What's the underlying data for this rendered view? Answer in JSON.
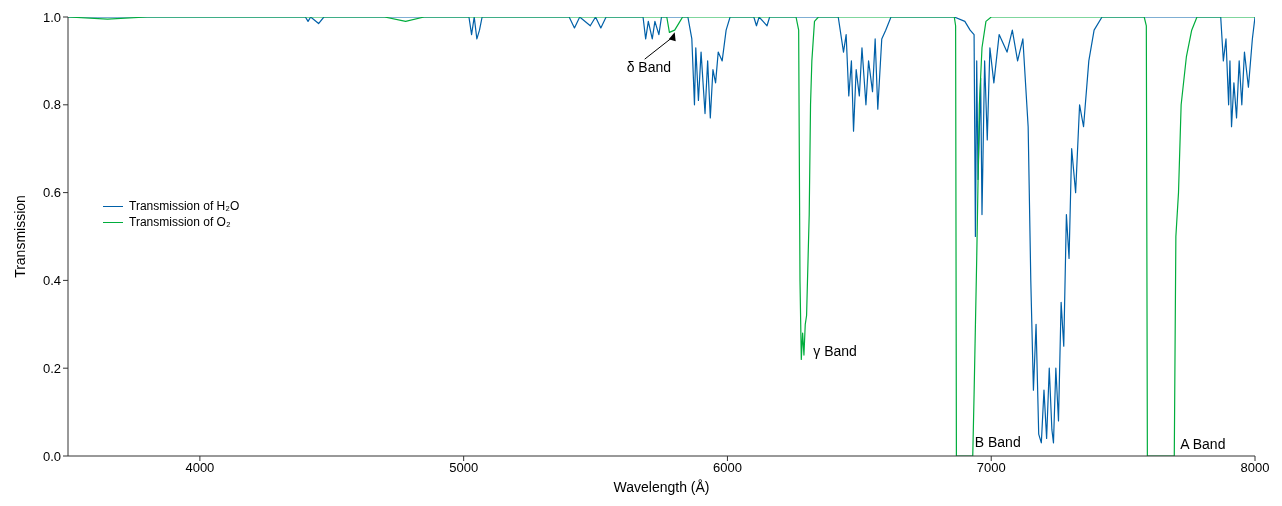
{
  "chart_data": {
    "type": "line",
    "xlabel": "Wavelength (Å)",
    "ylabel": "Transmission",
    "xlim": [
      3500,
      8000
    ],
    "xticks": [
      4000,
      5000,
      6000,
      7000,
      8000
    ],
    "ylim": [
      0,
      1
    ],
    "yticks": [
      {
        "value": 0,
        "label": "0.0"
      },
      {
        "value": 0.2,
        "label": "0.2"
      },
      {
        "value": 0.4,
        "label": "0.4"
      },
      {
        "value": 0.6,
        "label": "0.6"
      },
      {
        "value": 0.8,
        "label": "0.8"
      },
      {
        "value": 1,
        "label": "1.0"
      }
    ],
    "legend": "left",
    "marker": "none",
    "line_style": "solid",
    "series": [
      {
        "name": "Transmission of H₂O",
        "color": "#0060a8",
        "x": [
          3500,
          4400,
          4410,
          4420,
          4450,
          4470,
          5020,
          5030,
          5040,
          5050,
          5060,
          5070,
          5400,
          5420,
          5440,
          5480,
          5500,
          5520,
          5540,
          5680,
          5690,
          5700,
          5715,
          5725,
          5740,
          5750,
          5850,
          5865,
          5875,
          5880,
          5890,
          5900,
          5915,
          5925,
          5935,
          5945,
          5955,
          5965,
          5980,
          5995,
          6010,
          6100,
          6110,
          6120,
          6150,
          6160,
          6420,
          6440,
          6450,
          6460,
          6470,
          6478,
          6488,
          6500,
          6510,
          6525,
          6535,
          6550,
          6560,
          6570,
          6585,
          6600,
          6620,
          6860,
          6900,
          6920,
          6935,
          6940,
          6945,
          6950,
          6960,
          6965,
          6975,
          6985,
          6995,
          7010,
          7030,
          7060,
          7080,
          7100,
          7120,
          7140,
          7150,
          7160,
          7170,
          7180,
          7190,
          7200,
          7210,
          7220,
          7230,
          7236,
          7245,
          7255,
          7265,
          7275,
          7285,
          7295,
          7305,
          7320,
          7335,
          7350,
          7370,
          7390,
          7420,
          7580,
          7870,
          7880,
          7890,
          7900,
          7905,
          7911,
          7920,
          7930,
          7940,
          7950,
          7960,
          7975,
          7990,
          8000
        ],
        "values": [
          1,
          1,
          0.99,
          1,
          0.985,
          1,
          1,
          0.96,
          1,
          0.95,
          0.97,
          1,
          1,
          0.975,
          1,
          0.98,
          1,
          0.975,
          1,
          1,
          0.95,
          0.99,
          0.95,
          0.99,
          0.96,
          1,
          1,
          0.95,
          0.8,
          0.93,
          0.81,
          0.92,
          0.78,
          0.9,
          0.77,
          0.88,
          0.85,
          0.92,
          0.9,
          0.97,
          1,
          1,
          0.98,
          1,
          0.98,
          1,
          1,
          0.92,
          0.96,
          0.82,
          0.9,
          0.74,
          0.88,
          0.82,
          0.93,
          0.8,
          0.9,
          0.83,
          0.95,
          0.79,
          0.95,
          0.97,
          1,
          1,
          0.99,
          0.97,
          0.96,
          0.5,
          0.9,
          0.63,
          0.86,
          0.55,
          0.9,
          0.72,
          0.93,
          0.85,
          0.96,
          0.92,
          0.97,
          0.9,
          0.95,
          0.75,
          0.4,
          0.15,
          0.3,
          0.05,
          0.03,
          0.15,
          0.04,
          0.2,
          0.06,
          0.03,
          0.2,
          0.08,
          0.35,
          0.25,
          0.55,
          0.45,
          0.7,
          0.6,
          0.8,
          0.75,
          0.9,
          0.97,
          1,
          1,
          1,
          0.9,
          0.95,
          0.8,
          0.9,
          0.75,
          0.85,
          0.77,
          0.9,
          0.8,
          0.92,
          0.84,
          0.95,
          1
        ]
      },
      {
        "name": "Transmission of O₂",
        "color": "#00ad3c",
        "x": [
          3500,
          3650,
          3800,
          4700,
          4780,
          4850,
          5770,
          5780,
          5800,
          5815,
          5830,
          6260,
          6270,
          6275,
          6280,
          6285,
          6290,
          6295,
          6300,
          6310,
          6315,
          6320,
          6330,
          6345,
          6860,
          6865,
          6868,
          6930,
          6935,
          6945,
          6955,
          6965,
          6980,
          7000,
          7580,
          7588,
          7592,
          7694,
          7700,
          7710,
          7720,
          7740,
          7760,
          7780,
          8000
        ],
        "values": [
          1,
          0.995,
          1,
          1,
          0.99,
          1,
          1,
          0.965,
          0.97,
          0.985,
          1,
          1,
          0.97,
          0.4,
          0.22,
          0.28,
          0.23,
          0.3,
          0.32,
          0.55,
          0.8,
          0.9,
          0.99,
          1,
          1,
          0.98,
          0,
          0,
          0.14,
          0.45,
          0.8,
          0.93,
          0.99,
          1,
          1,
          0.98,
          0,
          0,
          0.5,
          0.6,
          0.8,
          0.91,
          0.97,
          1,
          1
        ]
      }
    ],
    "annotations": [
      {
        "text": "δ Band",
        "x": 5800,
        "y": 0.97
      },
      {
        "text": "γ Band",
        "x": 6280,
        "y": 0.22
      },
      {
        "text": "B Band",
        "x": 6930,
        "y": 0
      },
      {
        "text": "A Band",
        "x": 7694,
        "y": 0
      }
    ]
  }
}
